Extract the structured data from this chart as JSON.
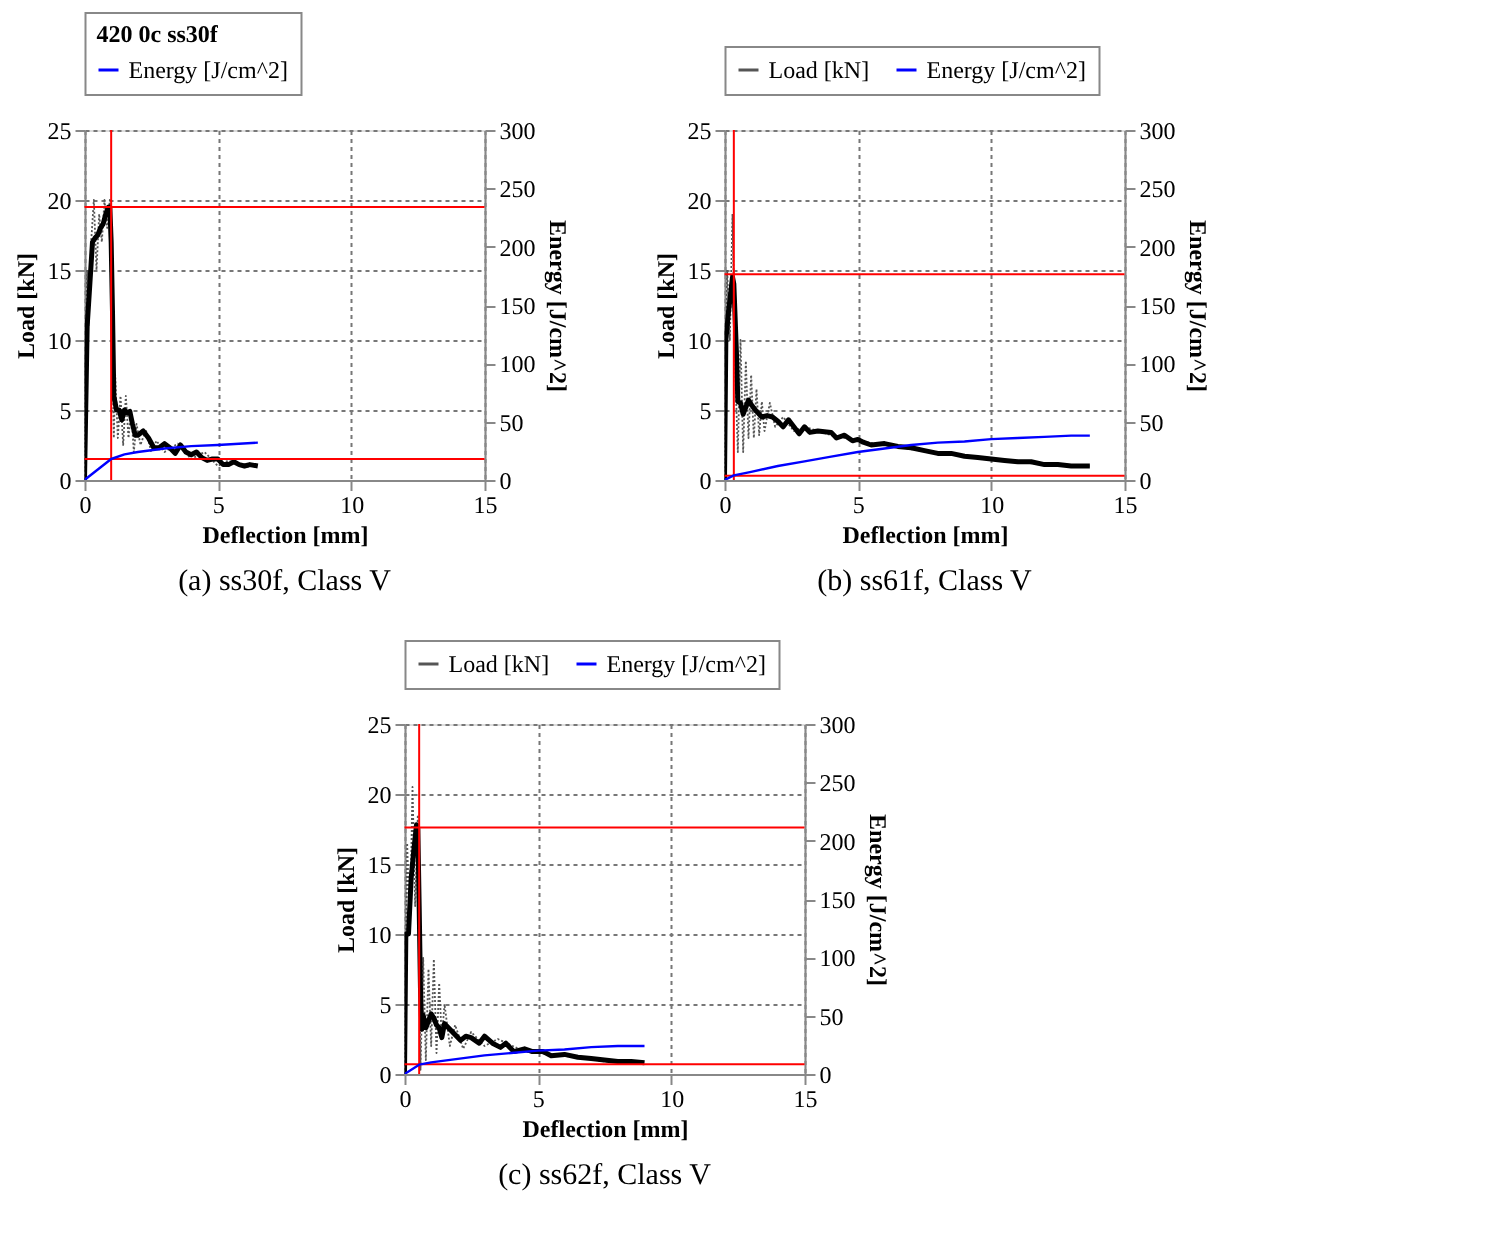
{
  "chart_data": [
    {
      "type": "line",
      "title": "(a) ss30f, Class V",
      "xlabel": "Deflection [mm]",
      "ylabel": "Load [kN]",
      "y2label": "Energy [J/cm^2]",
      "legend_title": "420 0c ss30f",
      "legend": "top",
      "grid": true,
      "xlim": [
        0,
        15
      ],
      "xticks": [
        0,
        5,
        10,
        15
      ],
      "ylim": [
        0,
        25
      ],
      "yticks": [
        0,
        5,
        10,
        15,
        20,
        25
      ],
      "y2lim": [
        0,
        300
      ],
      "y2ticks": [
        0,
        50,
        100,
        150,
        200,
        250,
        300
      ],
      "series": [
        {
          "color": "#555555",
          "line_style": "dotted",
          "x": [
            0,
            0.05,
            0.1,
            0.15,
            0.25,
            0.35,
            0.45,
            0.55,
            0.65,
            0.75,
            0.85,
            0.95,
            1.05,
            1.1,
            1.15,
            1.25,
            1.35,
            1.45,
            1.55,
            1.65,
            1.75,
            1.85,
            1.95,
            2.1,
            2.3,
            2.5,
            2.7,
            3.0,
            3.5,
            4.0,
            4.5,
            5.0,
            5.5,
            6.0,
            6.5
          ],
          "values": [
            0,
            10,
            15,
            11,
            17,
            20,
            15,
            19,
            17,
            20,
            18,
            20,
            8,
            3,
            7.5,
            3,
            6,
            2.5,
            6,
            3,
            5,
            2,
            4,
            2.5,
            3.6,
            2,
            2.8,
            2,
            2.6,
            1.5,
            2.0,
            1.0,
            1.5,
            0.9,
            1.1
          ]
        },
        {
          "color": "#000000",
          "line_style": "solid",
          "x": [
            0,
            0.1,
            0.2,
            0.3,
            0.4,
            0.5,
            0.6,
            0.7,
            0.8,
            0.9,
            0.95,
            1.0,
            1.05,
            1.1,
            1.2,
            1.3,
            1.4,
            1.5,
            1.6,
            1.7,
            1.8,
            1.9,
            2.0,
            2.2,
            2.4,
            2.6,
            2.8,
            3.0,
            3.2,
            3.4,
            3.6,
            3.8,
            4.0,
            4.2,
            4.4,
            4.6,
            4.8,
            5.0,
            5.2,
            5.4,
            5.6,
            5.8,
            6.0,
            6.2,
            6.5
          ],
          "values": [
            0,
            11,
            14,
            17,
            17.3,
            17.5,
            18,
            18.3,
            19,
            19.5,
            19.5,
            17,
            12,
            6,
            5,
            5,
            4.3,
            5,
            4.8,
            4.9,
            4,
            3.2,
            3.2,
            3.5,
            3,
            2.3,
            2.3,
            2.6,
            2.3,
            1.9,
            2.5,
            2,
            1.8,
            2.0,
            1.6,
            1.4,
            1.5,
            1.5,
            1.1,
            1.1,
            1.3,
            1.1,
            1.0,
            1.1,
            1.0
          ]
        },
        {
          "name": "Energy [J/cm^2]",
          "color": "#0000ff",
          "line_style": "solid",
          "axis": "y2",
          "x": [
            0,
            1.0,
            1.5,
            2,
            3,
            4,
            5,
            6.5
          ],
          "values": [
            0,
            18,
            22,
            24,
            27,
            29,
            30,
            32
          ]
        }
      ],
      "ref_lines": [
        {
          "axis": "x",
          "value": 1.0,
          "color": "#ff0000"
        },
        {
          "axis": "y",
          "value": 19.5,
          "color": "#ff0000"
        },
        {
          "axis": "y",
          "value": 1.5,
          "color": "#ff0000"
        }
      ]
    },
    {
      "type": "line",
      "title": "(b) ss61f, Class V",
      "xlabel": "Deflection [mm]",
      "ylabel": "Load [kN]",
      "y2label": "Energy [J/cm^2]",
      "legend": "top",
      "grid": true,
      "xlim": [
        0,
        15
      ],
      "xticks": [
        0,
        5,
        10,
        15
      ],
      "ylim": [
        0,
        25
      ],
      "yticks": [
        0,
        5,
        10,
        15,
        20,
        25
      ],
      "y2lim": [
        0,
        300
      ],
      "y2ticks": [
        0,
        50,
        100,
        150,
        200,
        250,
        300
      ],
      "series": [
        {
          "name": "Load [kN]",
          "color": "#555555",
          "line_style": "dotted",
          "x": [
            0,
            0.1,
            0.2,
            0.3,
            0.4,
            0.5,
            0.6,
            0.7,
            0.8,
            0.9,
            1.0,
            1.1,
            1.2,
            1.3,
            1.4,
            1.5,
            1.7,
            1.9,
            2.2,
            2.6,
            3.0,
            4.0,
            5.0,
            6.0,
            8,
            10,
            12,
            13.7
          ],
          "values": [
            0,
            15,
            10,
            19,
            8,
            2,
            10,
            2,
            8.5,
            3,
            7.5,
            3,
            6.5,
            3.2,
            5.6,
            3.5,
            5.5,
            3.8,
            4.5,
            3.5,
            3.8,
            3.2,
            2.8,
            2.5,
            1.9,
            1.5,
            1.1,
            1.0
          ]
        },
        {
          "color": "#000000",
          "line_style": "solid",
          "x": [
            0,
            0.05,
            0.15,
            0.3,
            0.35,
            0.45,
            0.5,
            0.6,
            0.7,
            0.8,
            0.9,
            1.0,
            1.2,
            1.4,
            1.6,
            1.8,
            2.0,
            2.2,
            2.4,
            2.6,
            2.8,
            3.0,
            3.2,
            3.5,
            4.0,
            4.2,
            4.5,
            4.8,
            5.0,
            5.2,
            5.5,
            6.0,
            6.5,
            7.0,
            7.5,
            8.0,
            8.5,
            9.0,
            9.5,
            10.0,
            10.5,
            11.0,
            11.5,
            12.0,
            12.5,
            13.0,
            13.7
          ],
          "values": [
            0,
            10,
            12,
            14.5,
            14,
            9,
            5.6,
            5.5,
            4.7,
            5.2,
            5.7,
            5.4,
            4.9,
            4.5,
            4.6,
            4.5,
            4.2,
            3.8,
            4.3,
            3.8,
            3.3,
            3.8,
            3.4,
            3.5,
            3.4,
            3.0,
            3.2,
            2.8,
            2.9,
            2.7,
            2.5,
            2.6,
            2.4,
            2.3,
            2.1,
            1.9,
            1.9,
            1.7,
            1.6,
            1.5,
            1.4,
            1.3,
            1.3,
            1.1,
            1.1,
            1.0,
            1.0
          ]
        },
        {
          "name": "Energy [J/cm^2]",
          "color": "#0000ff",
          "line_style": "solid",
          "axis": "y2",
          "x": [
            0,
            0.35,
            1,
            2,
            3,
            4,
            5,
            6,
            7,
            8,
            9,
            10,
            11,
            12,
            13,
            13.7
          ],
          "values": [
            0,
            4,
            7,
            12,
            16,
            20,
            24,
            27,
            30,
            32,
            33,
            35,
            36,
            37,
            38,
            38
          ]
        }
      ],
      "ref_lines": [
        {
          "axis": "x",
          "value": 0.35,
          "color": "#ff0000"
        },
        {
          "axis": "y",
          "value": 14.7,
          "color": "#ff0000"
        },
        {
          "axis": "y",
          "value": 0.3,
          "color": "#ff0000"
        }
      ]
    },
    {
      "type": "line",
      "title": "(c) ss62f, Class V",
      "xlabel": "Deflection [mm]",
      "ylabel": "Load [kN]",
      "y2label": "Energy [J/cm^2]",
      "legend": "top",
      "grid": true,
      "xlim": [
        0,
        15
      ],
      "xticks": [
        0,
        5,
        10,
        15
      ],
      "ylim": [
        0,
        25
      ],
      "yticks": [
        0,
        5,
        10,
        15,
        20,
        25
      ],
      "y2lim": [
        0,
        300
      ],
      "y2ticks": [
        0,
        50,
        100,
        150,
        200,
        250,
        300
      ],
      "series": [
        {
          "name": "Load [kN]",
          "color": "#555555",
          "line_style": "dotted",
          "x": [
            0,
            0.1,
            0.2,
            0.3,
            0.4,
            0.5,
            0.6,
            0.7,
            0.8,
            0.9,
            1.0,
            1.1,
            1.2,
            1.3,
            1.4,
            1.5,
            1.7,
            1.9,
            2.2,
            2.5,
            3.0,
            3.5,
            4.5,
            6.0,
            7.5,
            9.0
          ],
          "values": [
            0,
            16.5,
            10,
            20.5,
            12,
            18.5,
            0.3,
            8.3,
            1,
            7.5,
            2,
            8.2,
            1.5,
            6.5,
            2.5,
            5,
            2,
            3.5,
            1.8,
            3,
            2,
            2.5,
            1.6,
            1.3,
            0.9,
            0.8
          ]
        },
        {
          "color": "#000000",
          "line_style": "solid",
          "x": [
            0,
            0.05,
            0.15,
            0.25,
            0.35,
            0.45,
            0.5,
            0.55,
            0.6,
            0.65,
            0.7,
            0.8,
            0.9,
            1.0,
            1.1,
            1.2,
            1.3,
            1.4,
            1.5,
            1.7,
            1.9,
            2.1,
            2.3,
            2.5,
            2.8,
            3.0,
            3.3,
            3.6,
            3.8,
            4.1,
            4.5,
            4.8,
            5.2,
            5.5,
            6.0,
            6.5,
            7.0,
            7.5,
            8.0,
            8.5,
            9.0
          ],
          "values": [
            0,
            10,
            10,
            14,
            16,
            17.8,
            17.5,
            12,
            6,
            3.2,
            4.2,
            3.3,
            3.8,
            4.3,
            4.0,
            3.5,
            3.3,
            2.6,
            3.6,
            3.2,
            2.8,
            2.4,
            2.7,
            2.6,
            2.2,
            2.7,
            2.2,
            1.9,
            2.2,
            1.6,
            1.8,
            1.6,
            1.6,
            1.3,
            1.4,
            1.2,
            1.1,
            1.0,
            0.9,
            0.9,
            0.8
          ]
        },
        {
          "name": "Energy [J/cm^2]",
          "color": "#0000ff",
          "line_style": "solid",
          "axis": "y2",
          "x": [
            0,
            0.55,
            1,
            2,
            3,
            4,
            5,
            6,
            7,
            8,
            9
          ],
          "values": [
            0,
            8,
            10,
            13,
            16,
            18,
            20,
            21,
            23,
            24,
            24
          ]
        }
      ],
      "ref_lines": [
        {
          "axis": "x",
          "value": 0.55,
          "color": "#ff0000"
        },
        {
          "axis": "y",
          "value": 17.6,
          "color": "#ff0000"
        },
        {
          "axis": "y",
          "value": 0.7,
          "color": "#ff0000"
        }
      ]
    }
  ]
}
